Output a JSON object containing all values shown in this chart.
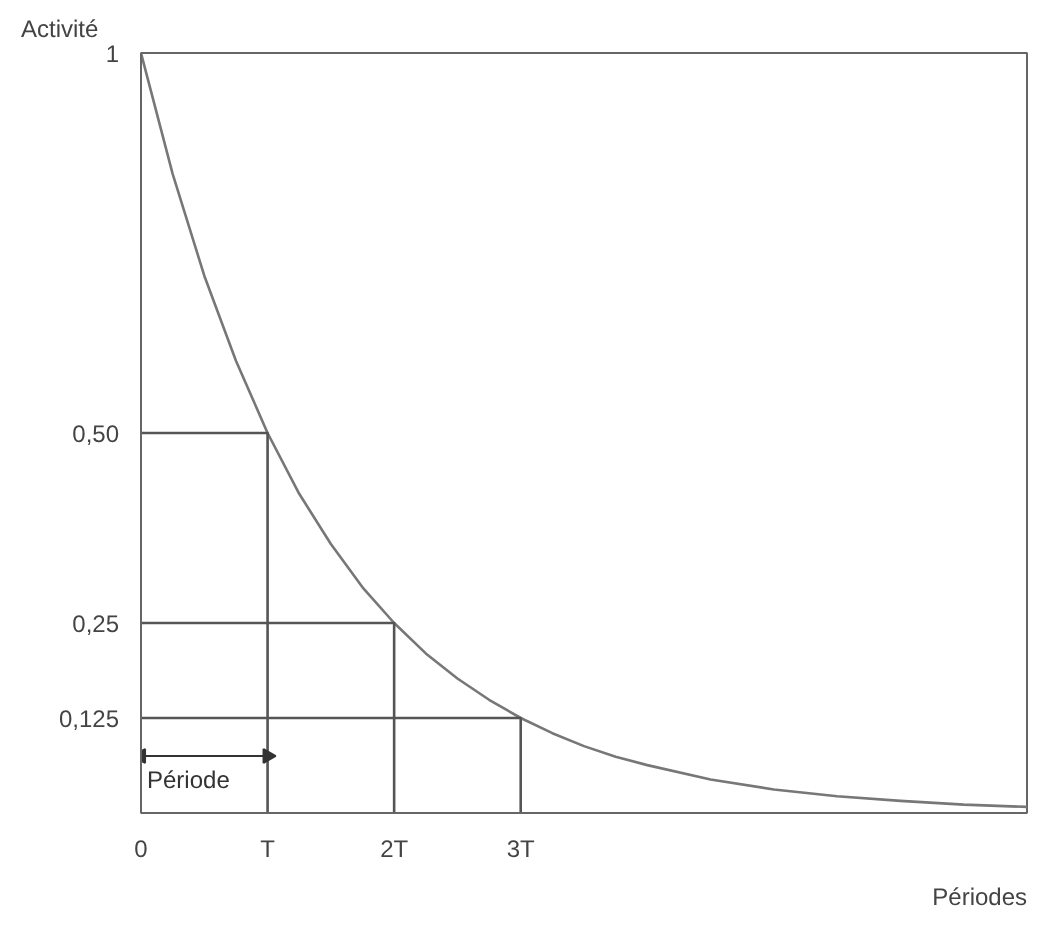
{
  "chart_data": {
    "type": "line",
    "ylabel": "Activité",
    "xlabel": "Périodes",
    "x": [
      0,
      0.25,
      0.5,
      0.75,
      1,
      1.25,
      1.5,
      1.75,
      2,
      2.25,
      2.5,
      2.75,
      3,
      3.25,
      3.5,
      3.75,
      4,
      4.5,
      5,
      5.5,
      6,
      6.5,
      7
    ],
    "series": [
      {
        "color": "#777777",
        "values": [
          1,
          0.841,
          0.707,
          0.595,
          0.5,
          0.42,
          0.354,
          0.297,
          0.25,
          0.21,
          0.177,
          0.149,
          0.125,
          0.105,
          0.088,
          0.074,
          0.063,
          0.044,
          0.031,
          0.022,
          0.016,
          0.011,
          0.008
        ]
      },
      {
        "color": "#555555",
        "x": [
          0,
          1,
          1
        ],
        "values": [
          0.5,
          0.5,
          0
        ]
      },
      {
        "color": "#555555",
        "x": [
          0,
          2,
          2
        ],
        "values": [
          0.25,
          0.25,
          0
        ]
      },
      {
        "color": "#555555",
        "x": [
          0,
          3,
          3
        ],
        "values": [
          0.125,
          0.125,
          0
        ]
      }
    ],
    "xlim": [
      0,
      7
    ],
    "ylim": [
      0,
      1
    ],
    "xticks": [
      {
        "value": 0,
        "label": "0"
      },
      {
        "value": 1,
        "label": "T"
      },
      {
        "value": 2,
        "label": "2T"
      },
      {
        "value": 3,
        "label": "3T"
      }
    ],
    "yticks": [
      {
        "value": 0.125,
        "label": "0,125"
      },
      {
        "value": 0.25,
        "label": "0,25"
      },
      {
        "value": 0.5,
        "label": "0,50"
      },
      {
        "value": 1,
        "label": "1"
      }
    ],
    "annotations": [
      "Période"
    ],
    "grid": false,
    "marker": "none",
    "line_style": "solid"
  }
}
